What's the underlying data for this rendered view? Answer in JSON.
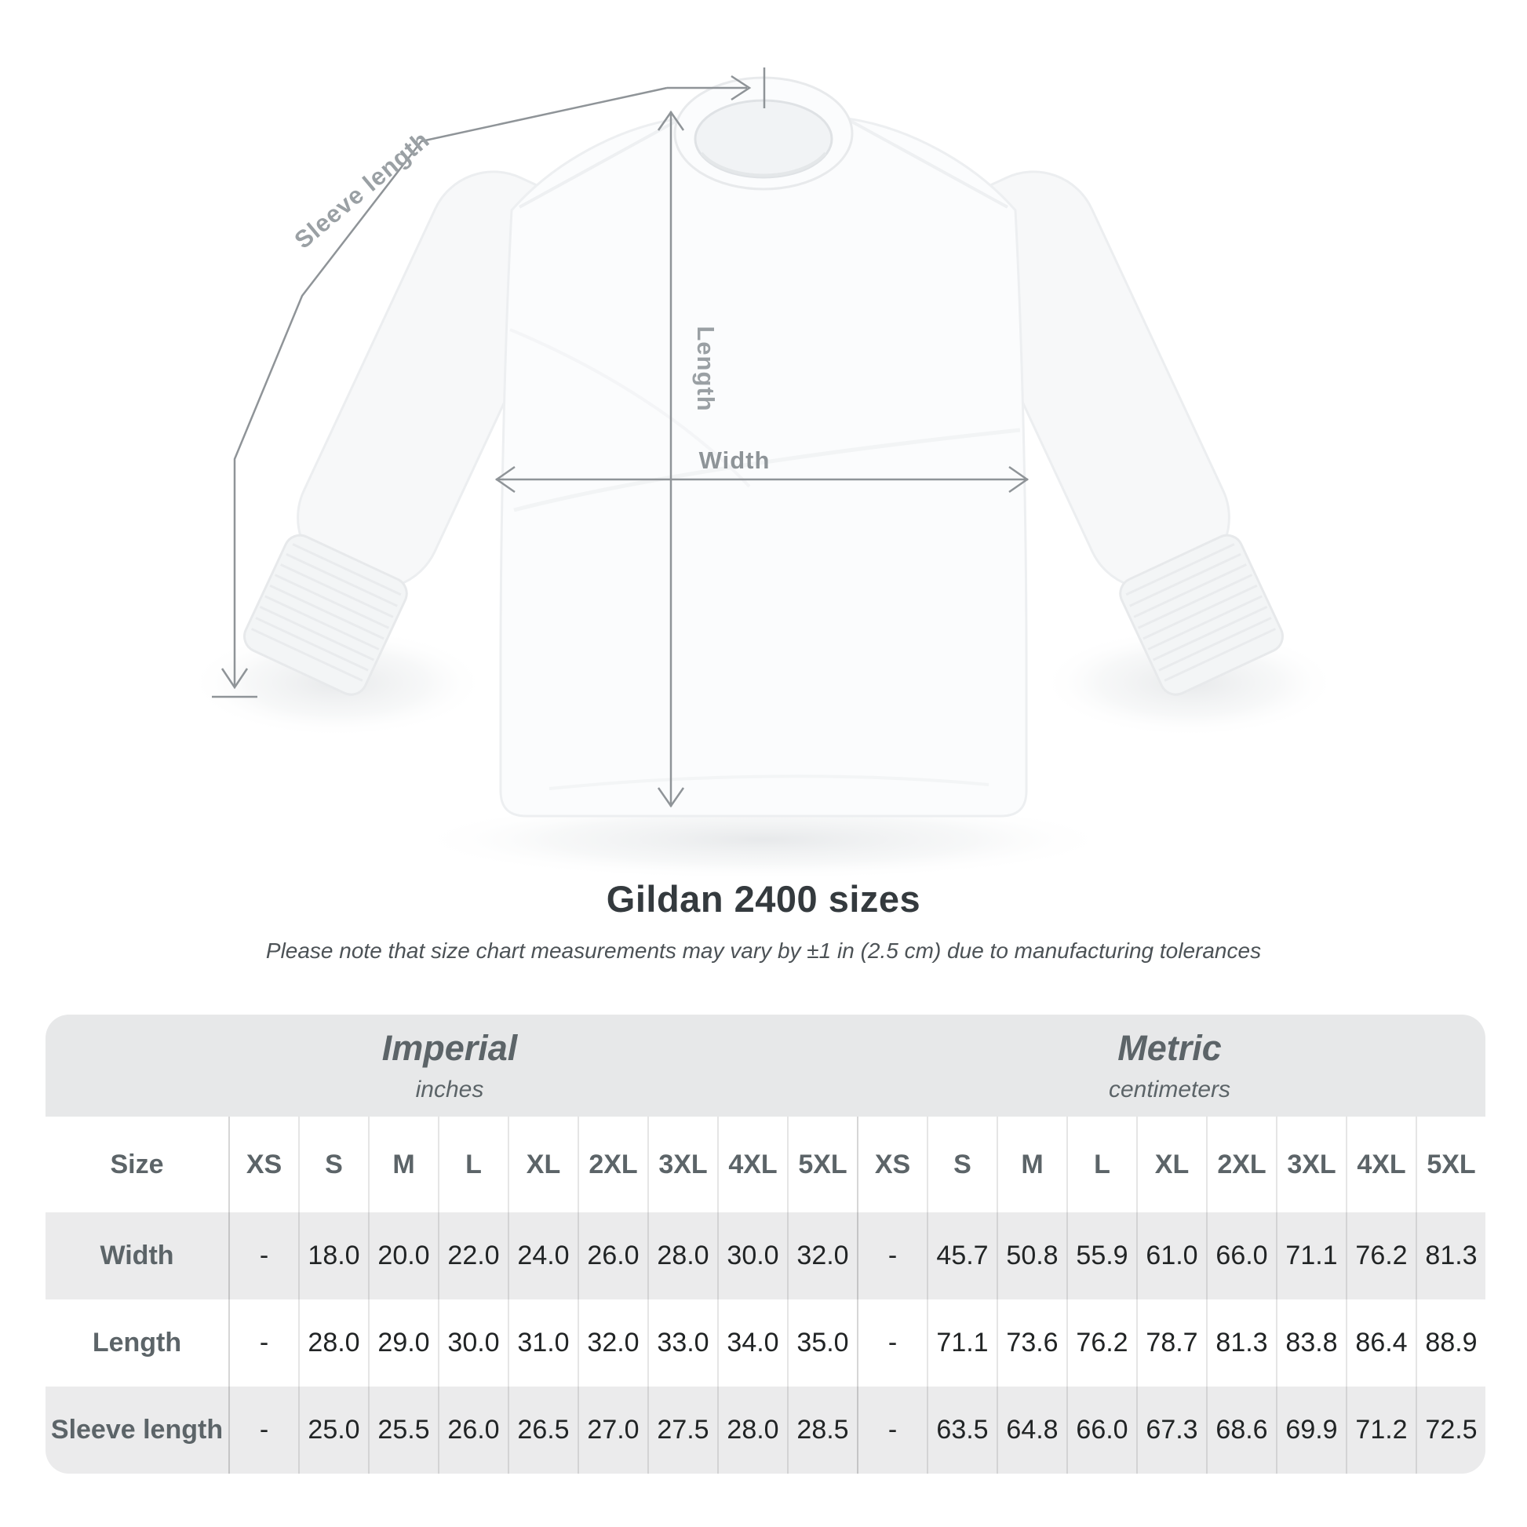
{
  "title": "Gildan 2400 sizes",
  "subtitle": "Please note that size chart measurements may vary by ±1 in (2.5 cm) due to manufacturing tolerances",
  "diagram": {
    "sleeve_length_label": "Sleeve length",
    "length_label": "Length",
    "width_label": "Width",
    "line_color": "#8f9498",
    "label_color": "#9aa0a4"
  },
  "table": {
    "size_col_header": "Size",
    "unit_groups": [
      {
        "label": "Imperial",
        "sublabel": "inches"
      },
      {
        "label": "Metric",
        "sublabel": "centimeters"
      }
    ],
    "sizes": [
      "XS",
      "S",
      "M",
      "L",
      "XL",
      "2XL",
      "3XL",
      "4XL",
      "5XL"
    ],
    "rows": [
      {
        "label": "Width",
        "values": [
          "-",
          "18.0",
          "20.0",
          "22.0",
          "24.0",
          "26.0",
          "28.0",
          "30.0",
          "32.0",
          "-",
          "45.7",
          "50.8",
          "55.9",
          "61.0",
          "66.0",
          "71.1",
          "76.2",
          "81.3"
        ]
      },
      {
        "label": "Length",
        "values": [
          "-",
          "28.0",
          "29.0",
          "30.0",
          "31.0",
          "32.0",
          "33.0",
          "34.0",
          "35.0",
          "-",
          "71.1",
          "73.6",
          "76.2",
          "78.7",
          "81.3",
          "83.8",
          "86.4",
          "88.9"
        ]
      },
      {
        "label": "Sleeve length",
        "values": [
          "-",
          "25.0",
          "25.5",
          "26.0",
          "26.5",
          "27.0",
          "27.5",
          "28.0",
          "28.5",
          "-",
          "63.5",
          "64.8",
          "66.0",
          "67.3",
          "68.6",
          "69.9",
          "71.2",
          "72.5"
        ]
      }
    ],
    "colors": {
      "band_gray": "#e7e8e9",
      "row_gray": "#ebebec",
      "heading_text": "#5c6468",
      "value_text": "#212425"
    }
  },
  "chart_data": {
    "type": "table",
    "title": "Gildan 2400 sizes",
    "note": "Please note that size chart measurements may vary by ±1 in (2.5 cm) due to manufacturing tolerances",
    "unit_groups": [
      "Imperial (inches)",
      "Metric (centimeters)"
    ],
    "columns": [
      "Size",
      "XS",
      "S",
      "M",
      "L",
      "XL",
      "2XL",
      "3XL",
      "4XL",
      "5XL",
      "XS",
      "S",
      "M",
      "L",
      "XL",
      "2XL",
      "3XL",
      "4XL",
      "5XL"
    ],
    "rows": [
      [
        "Width",
        "-",
        "18.0",
        "20.0",
        "22.0",
        "24.0",
        "26.0",
        "28.0",
        "30.0",
        "32.0",
        "-",
        "45.7",
        "50.8",
        "55.9",
        "61.0",
        "66.0",
        "71.1",
        "76.2",
        "81.3"
      ],
      [
        "Length",
        "-",
        "28.0",
        "29.0",
        "30.0",
        "31.0",
        "32.0",
        "33.0",
        "34.0",
        "35.0",
        "-",
        "71.1",
        "73.6",
        "76.2",
        "78.7",
        "81.3",
        "83.8",
        "86.4",
        "88.9"
      ],
      [
        "Sleeve length",
        "-",
        "25.0",
        "25.5",
        "26.0",
        "26.5",
        "27.0",
        "27.5",
        "28.0",
        "28.5",
        "-",
        "63.5",
        "64.8",
        "66.0",
        "67.3",
        "68.6",
        "69.9",
        "71.2",
        "72.5"
      ]
    ]
  }
}
